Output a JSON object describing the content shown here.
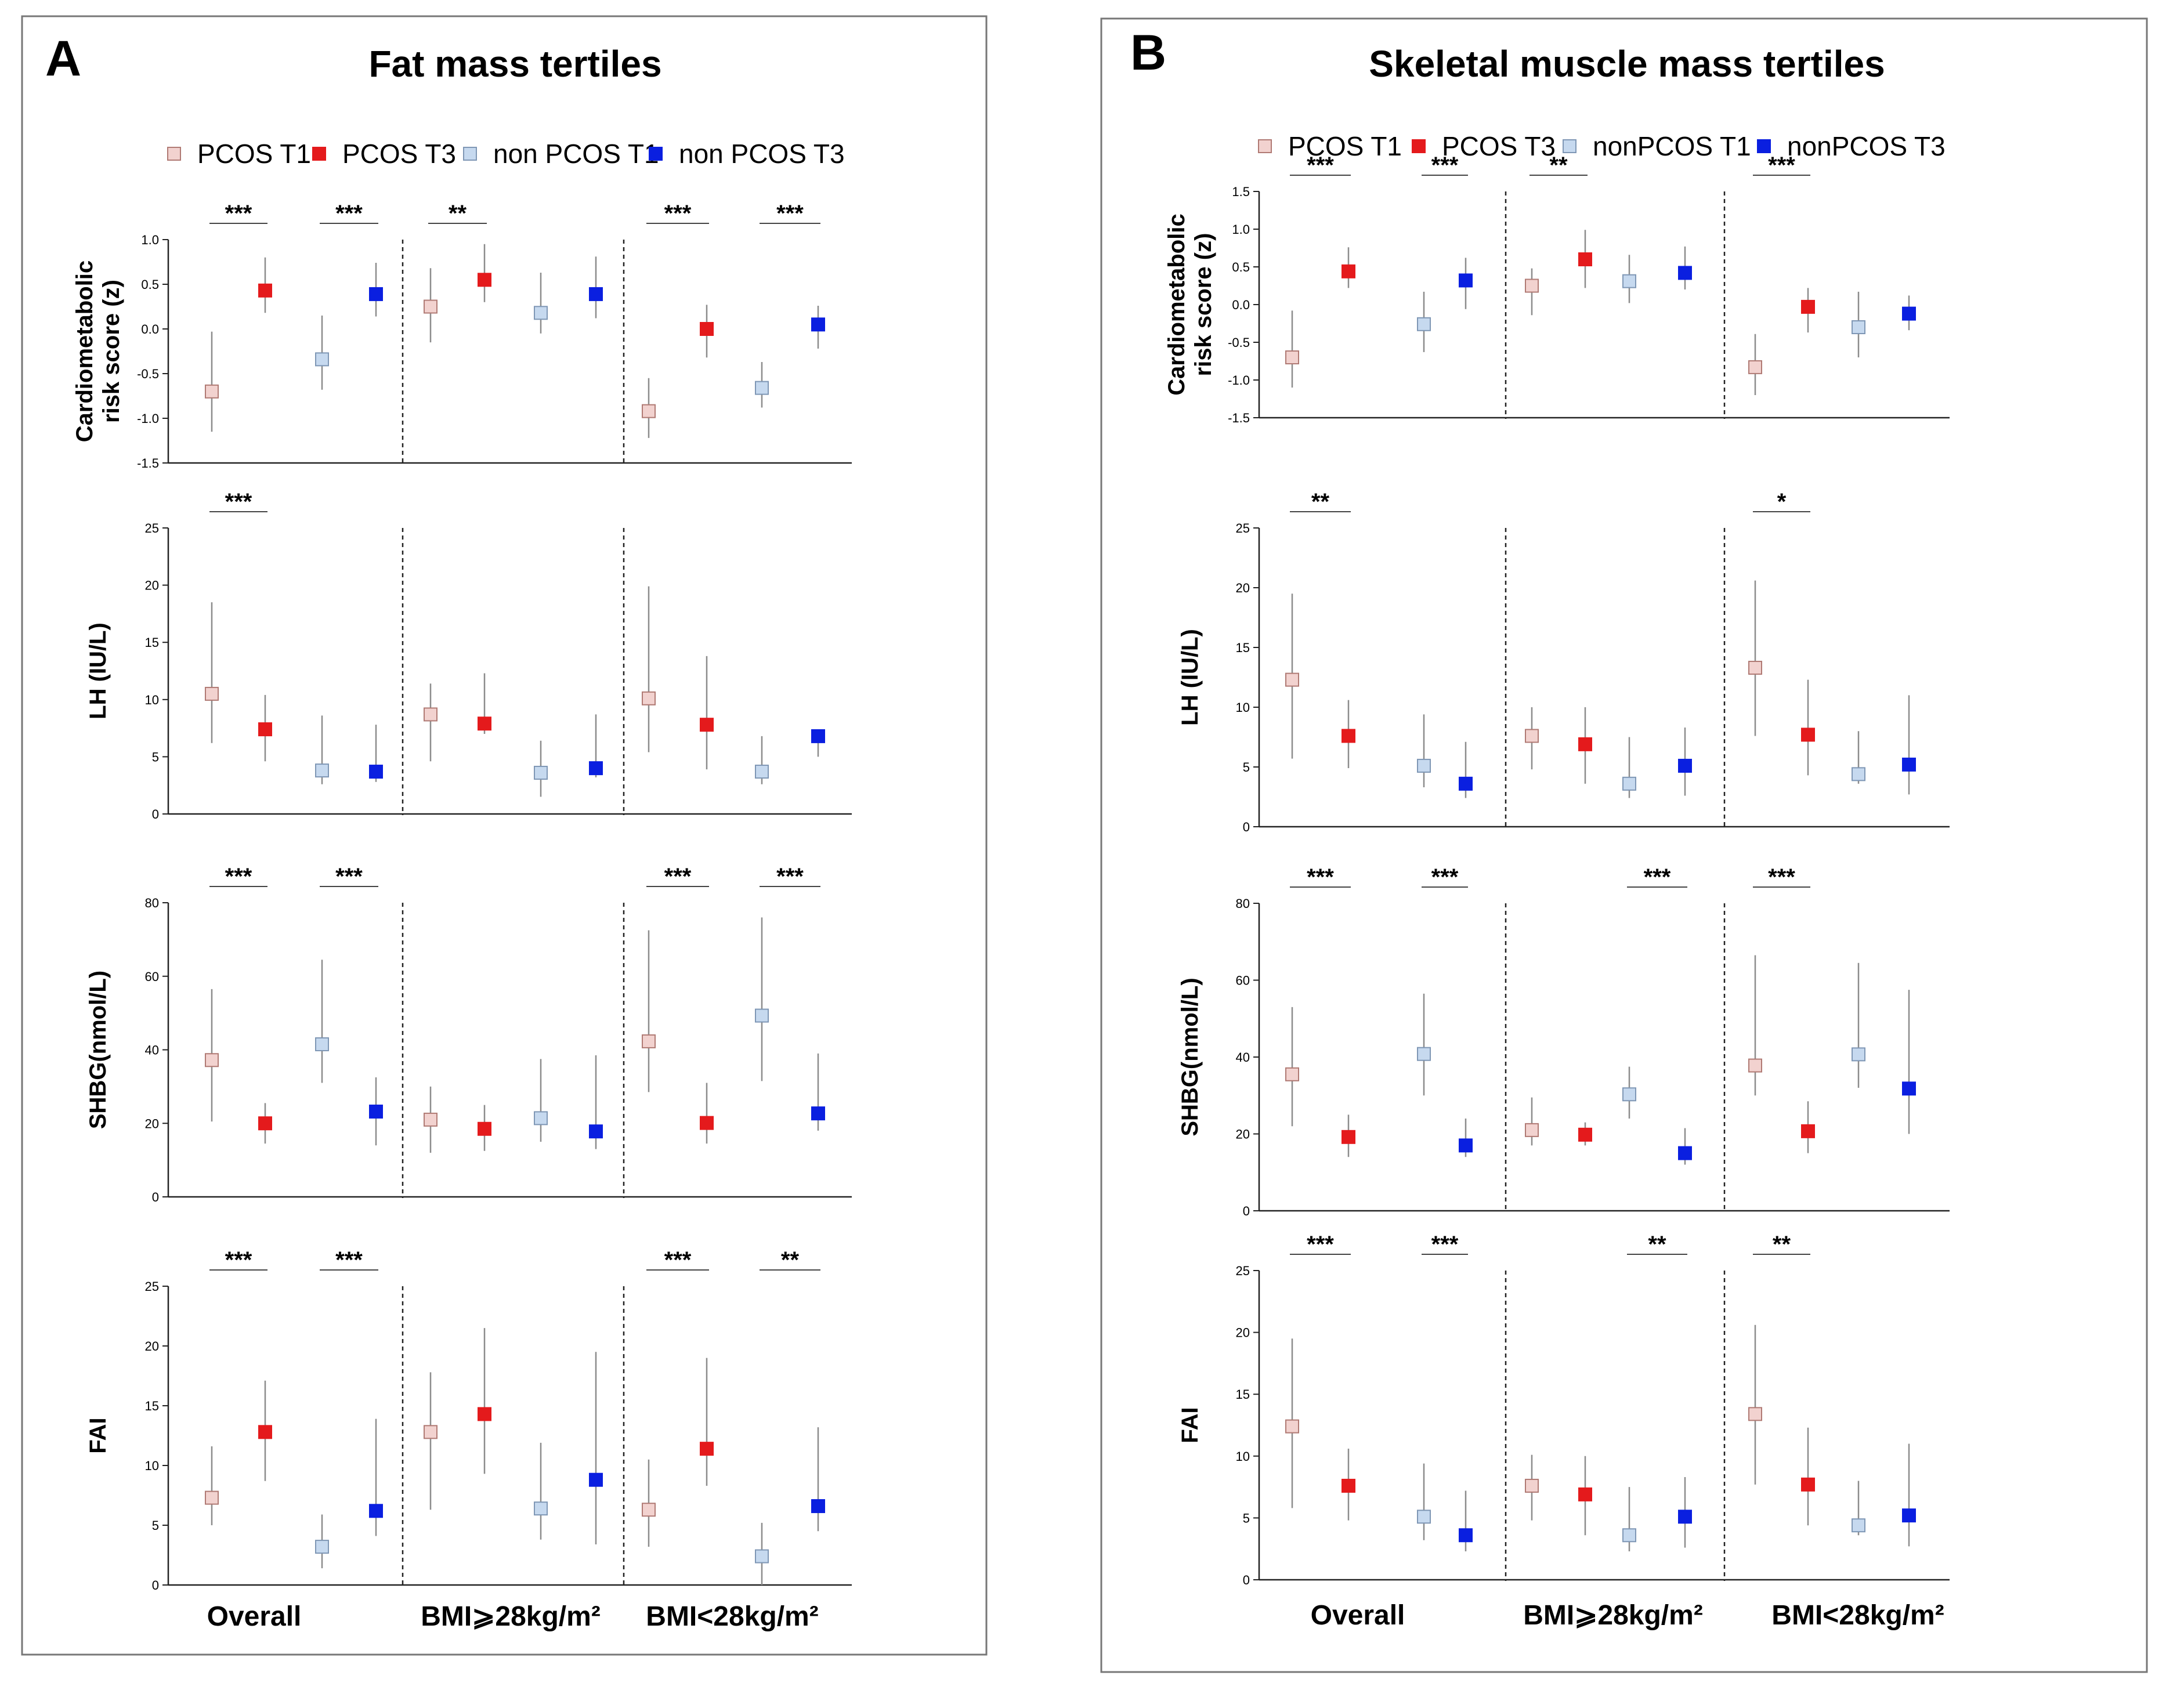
{
  "colors": {
    "pcos_t1": "#f2d2cf",
    "pcos_t1_edge": "#b07a74",
    "pcos_t3": "#e41a1c",
    "non_t1": "#c6d9ef",
    "non_t1_edge": "#7f97b5",
    "non_t3": "#0a1fe0",
    "whisker": "#8c8c8c"
  },
  "group_labels": [
    "Overall",
    "BMI⩾28kg/m²",
    "BMI<28kg/m²"
  ],
  "chart_data": [
    {
      "type": "scatter",
      "subtype": "point-range",
      "panel_letter": "A",
      "title": "Fat mass tertiles",
      "legend": [
        "PCOS T1",
        "PCOS T3",
        "non PCOS T1",
        "non PCOS T3"
      ],
      "legend_position": "top",
      "groups": [
        "Overall",
        "BMI⩾28kg/m²",
        "BMI<28kg/m²"
      ],
      "subplots": [
        {
          "ylabel": [
            "Cardiometabolic",
            "risk score (z)"
          ],
          "ylim": [
            -1.5,
            1.0
          ],
          "yticks": [
            "-1.5",
            "-1.0",
            "-0.5",
            "0.0",
            "0.5",
            "1.0"
          ],
          "values": [
            -0.7,
            0.43,
            -0.34,
            0.39,
            0.25,
            0.55,
            0.18,
            0.39,
            -0.92,
            0.0,
            -0.66,
            0.05
          ],
          "low": [
            -1.15,
            0.18,
            -0.68,
            0.14,
            -0.15,
            0.3,
            -0.05,
            0.12,
            -1.22,
            -0.32,
            -0.88,
            -0.22
          ],
          "high": [
            -0.03,
            0.8,
            0.15,
            0.74,
            0.68,
            0.95,
            0.63,
            0.81,
            -0.55,
            0.27,
            -0.37,
            0.26
          ],
          "sig": [
            {
              "from": 0,
              "to": 1,
              "label": "***"
            },
            {
              "from": 2,
              "to": 3,
              "label": "***"
            },
            {
              "from": 4,
              "to": 5,
              "label": "**"
            },
            {
              "from": 8,
              "to": 9,
              "label": "***"
            },
            {
              "from": 10,
              "to": 11,
              "label": "***"
            }
          ]
        },
        {
          "ylabel": [
            "LH (IU/L)"
          ],
          "ylim": [
            0,
            25
          ],
          "yticks": [
            "0",
            "5",
            "10",
            "15",
            "20",
            "25"
          ],
          "values": [
            10.5,
            7.4,
            3.8,
            3.7,
            8.7,
            7.9,
            3.6,
            4.0,
            10.1,
            7.8,
            3.7,
            6.8
          ],
          "low": [
            6.2,
            4.6,
            2.6,
            2.8,
            4.6,
            7.0,
            1.5,
            3.2,
            5.4,
            3.9,
            2.6,
            5.0
          ],
          "high": [
            18.5,
            10.4,
            8.6,
            7.8,
            11.4,
            12.3,
            6.4,
            8.7,
            19.9,
            13.8,
            6.8,
            6.8
          ],
          "sig": [
            {
              "from": 0,
              "to": 1,
              "label": "***"
            }
          ]
        },
        {
          "ylabel": [
            "SHBG(nmol/L)"
          ],
          "ylim": [
            0,
            80
          ],
          "yticks": [
            "0",
            "20",
            "40",
            "60",
            "80"
          ],
          "values": [
            37.2,
            20.0,
            41.5,
            23.2,
            21.0,
            18.5,
            21.4,
            17.8,
            42.3,
            20.1,
            49.3,
            22.7
          ],
          "low": [
            20.5,
            14.5,
            31.0,
            14.0,
            12.0,
            12.5,
            15.0,
            13.0,
            28.5,
            14.5,
            31.5,
            18.0
          ],
          "high": [
            56.5,
            25.5,
            64.5,
            32.5,
            30.0,
            25.0,
            37.5,
            38.5,
            72.5,
            31.0,
            76.0,
            39.0
          ],
          "sig": [
            {
              "from": 0,
              "to": 1,
              "label": "***"
            },
            {
              "from": 2,
              "to": 3,
              "label": "***"
            },
            {
              "from": 8,
              "to": 9,
              "label": "***"
            },
            {
              "from": 10,
              "to": 11,
              "label": "***"
            }
          ]
        },
        {
          "ylabel": [
            "FAI"
          ],
          "ylim": [
            0,
            25
          ],
          "yticks": [
            "0",
            "5",
            "10",
            "15",
            "20",
            "25"
          ],
          "values": [
            7.3,
            12.8,
            3.2,
            6.2,
            12.8,
            14.3,
            6.4,
            8.8,
            6.3,
            11.4,
            2.4,
            6.6
          ],
          "low": [
            5.0,
            8.7,
            1.4,
            4.1,
            6.3,
            9.3,
            3.8,
            3.4,
            3.2,
            8.3,
            0.0,
            4.5
          ],
          "high": [
            11.6,
            17.1,
            5.9,
            13.9,
            17.8,
            21.5,
            11.9,
            19.5,
            10.5,
            19.0,
            5.2,
            13.2
          ],
          "sig": [
            {
              "from": 0,
              "to": 1,
              "label": "***"
            },
            {
              "from": 2,
              "to": 3,
              "label": "***"
            },
            {
              "from": 8,
              "to": 9,
              "label": "***"
            },
            {
              "from": 10,
              "to": 11,
              "label": "**"
            }
          ]
        }
      ]
    },
    {
      "type": "scatter",
      "subtype": "point-range",
      "panel_letter": "B",
      "title": "Skeletal muscle mass tertiles",
      "legend": [
        "PCOS T1",
        "PCOS T3",
        "nonPCOS T1",
        "nonPCOS T3"
      ],
      "legend_position": "top",
      "groups": [
        "Overall",
        "BMI⩾28kg/m²",
        "BMI<28kg/m²"
      ],
      "subplots": [
        {
          "ylabel": [
            "Cardiometabolic",
            "risk score (z)"
          ],
          "ylim": [
            -1.5,
            1.5
          ],
          "yticks": [
            "-1.5",
            "-1.0",
            "-0.5",
            "0.0",
            "0.5",
            "1.0",
            "1.5"
          ],
          "values": [
            -0.7,
            0.44,
            -0.26,
            0.32,
            0.25,
            0.6,
            0.31,
            0.42,
            -0.83,
            -0.03,
            -0.3,
            -0.12
          ],
          "low": [
            -1.1,
            0.22,
            -0.63,
            -0.06,
            -0.14,
            0.22,
            0.02,
            0.2,
            -1.2,
            -0.37,
            -0.7,
            -0.34
          ],
          "high": [
            -0.08,
            0.76,
            0.17,
            0.62,
            0.48,
            0.99,
            0.66,
            0.77,
            -0.39,
            0.22,
            0.17,
            0.12
          ],
          "sig": [
            {
              "from": 0,
              "to": 1,
              "label": "***"
            },
            {
              "from": 2,
              "to": 3,
              "label": "***"
            },
            {
              "from": 4,
              "to": 5,
              "label": "**"
            },
            {
              "from": 8,
              "to": 9,
              "label": "***"
            }
          ]
        },
        {
          "ylabel": [
            "LH (IU/L)"
          ],
          "ylim": [
            0,
            25
          ],
          "yticks": [
            "0",
            "5",
            "10",
            "15",
            "20",
            "25"
          ],
          "values": [
            12.3,
            7.6,
            5.1,
            3.6,
            7.6,
            6.9,
            3.6,
            5.1,
            13.3,
            7.7,
            4.4,
            5.2
          ],
          "low": [
            5.7,
            4.9,
            3.3,
            2.4,
            4.8,
            3.6,
            2.4,
            2.6,
            7.6,
            4.3,
            3.6,
            2.7
          ],
          "high": [
            19.5,
            10.6,
            9.4,
            7.1,
            10.0,
            10.0,
            7.5,
            8.3,
            20.6,
            12.3,
            8.0,
            11.0
          ],
          "sig": [
            {
              "from": 0,
              "to": 1,
              "label": "**"
            },
            {
              "from": 8,
              "to": 9,
              "label": "*"
            }
          ]
        },
        {
          "ylabel": [
            "SHBG(nmol/L)"
          ],
          "ylim": [
            0,
            80
          ],
          "yticks": [
            "0",
            "20",
            "40",
            "60",
            "80"
          ],
          "values": [
            35.5,
            19.2,
            40.8,
            17.0,
            21.0,
            19.8,
            30.3,
            15.0,
            37.8,
            20.7,
            40.7,
            31.8
          ],
          "low": [
            22.0,
            14.0,
            30.0,
            14.0,
            17.0,
            17.0,
            24.0,
            12.0,
            30.0,
            15.0,
            32.0,
            20.0
          ],
          "high": [
            53.0,
            25.0,
            56.5,
            24.0,
            29.5,
            23.0,
            37.5,
            21.5,
            66.5,
            28.5,
            64.5,
            57.5
          ],
          "sig": [
            {
              "from": 0,
              "to": 1,
              "label": "***"
            },
            {
              "from": 2,
              "to": 3,
              "label": "***"
            },
            {
              "from": 6,
              "to": 7,
              "label": "***"
            },
            {
              "from": 8,
              "to": 9,
              "label": "***"
            }
          ]
        },
        {
          "ylabel": [
            "FAI"
          ],
          "ylim": [
            0,
            25
          ],
          "yticks": [
            "0",
            "5",
            "10",
            "15",
            "20",
            "25"
          ],
          "values": [
            12.4,
            7.6,
            5.1,
            3.6,
            7.6,
            6.9,
            3.6,
            5.1,
            13.4,
            7.7,
            4.4,
            5.2
          ],
          "low": [
            5.8,
            4.8,
            3.2,
            2.3,
            4.8,
            3.6,
            2.3,
            2.6,
            7.7,
            4.4,
            3.6,
            2.7
          ],
          "high": [
            19.5,
            10.6,
            9.4,
            7.2,
            10.1,
            10.0,
            7.5,
            8.3,
            20.6,
            12.3,
            8.0,
            11.0
          ],
          "sig": [
            {
              "from": 0,
              "to": 1,
              "label": "***"
            },
            {
              "from": 2,
              "to": 3,
              "label": "***"
            },
            {
              "from": 6,
              "to": 7,
              "label": "**"
            },
            {
              "from": 8,
              "to": 9,
              "label": "**"
            }
          ]
        }
      ]
    }
  ]
}
